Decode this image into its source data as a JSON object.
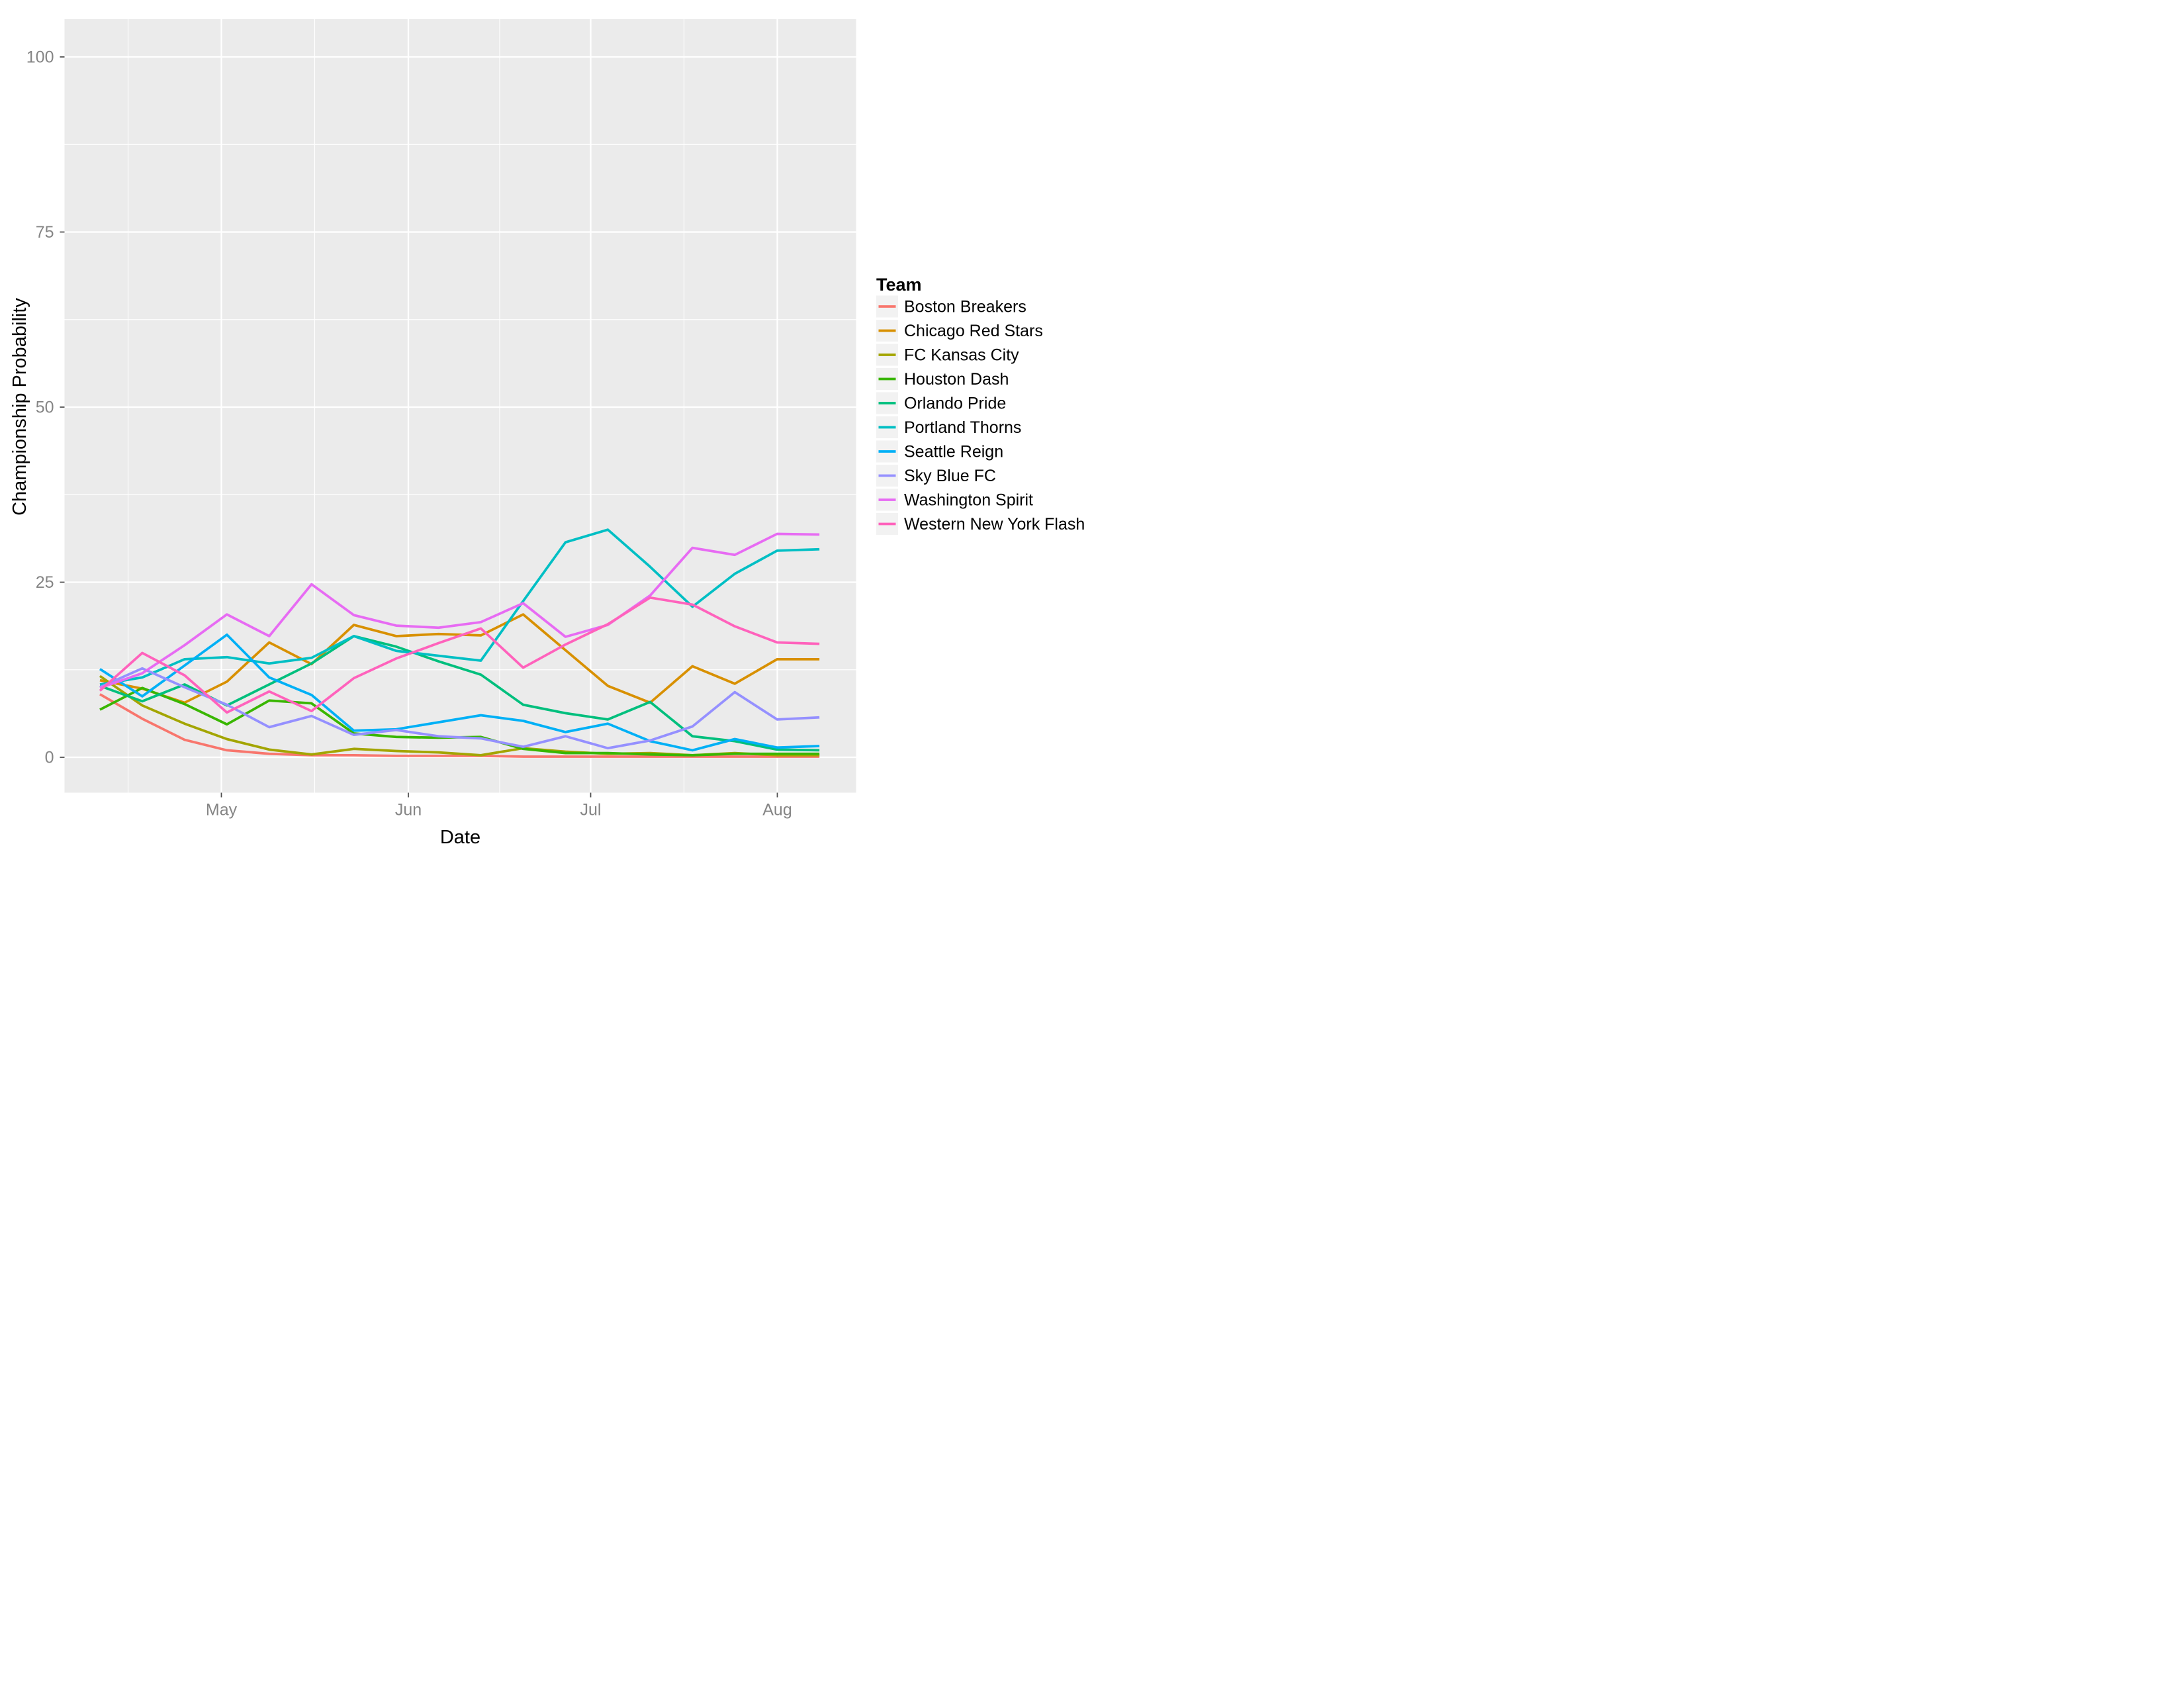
{
  "figure": {
    "kind": "ggplot-line-chart",
    "background": "#ffffff"
  },
  "panel": {
    "background": "#ebebeb",
    "grid_color": "#ffffff",
    "tick_mark_color": "#4d4d4d",
    "tick_label_color": "#858585"
  },
  "axes": {
    "x": {
      "label": "Date",
      "ticks": [
        "May",
        "Jun",
        "Jul",
        "Aug"
      ]
    },
    "y": {
      "label": "Championship Probability",
      "ticks": [
        "0",
        "25",
        "50",
        "75",
        "100"
      ]
    }
  },
  "legend": {
    "title": "Team",
    "key_background": "#f2f2f2"
  },
  "chart_data": {
    "type": "line",
    "title": "",
    "xlabel": "Date",
    "ylabel": "Championship Probability",
    "ylim": [
      0,
      100
    ],
    "y_major_ticks": [
      0,
      25,
      50,
      75,
      100
    ],
    "y_minor_ticks": [
      12.5,
      37.5,
      62.5,
      87.5
    ],
    "x_tick_labels": [
      "May",
      "Jun",
      "Jul",
      "Aug"
    ],
    "grid": "on",
    "legend_position": "right",
    "x": [
      "Apr 11",
      "Apr 18",
      "Apr 25",
      "May 2",
      "May 9",
      "May 16",
      "May 23",
      "May 30",
      "Jun 6",
      "Jun 13",
      "Jun 20",
      "Jun 27",
      "Jul 4",
      "Jul 11",
      "Jul 18",
      "Jul 25",
      "Aug 1",
      "Aug 8"
    ],
    "series": [
      {
        "name": "Boston Breakers",
        "color": "#F8766D",
        "values": [
          9.0,
          5.5,
          2.5,
          1.0,
          0.5,
          0.3,
          0.3,
          0.2,
          0.2,
          0.2,
          0.1,
          0.1,
          0.1,
          0.1,
          0.1,
          0.1,
          0.1,
          0.1
        ]
      },
      {
        "name": "Chicago Red Stars",
        "color": "#D89000",
        "values": [
          11.0,
          9.8,
          7.8,
          10.8,
          16.4,
          13.3,
          18.9,
          17.3,
          17.6,
          17.4,
          20.4,
          15.3,
          10.2,
          7.8,
          13.0,
          10.5,
          14.0,
          14.0
        ]
      },
      {
        "name": "FC Kansas City",
        "color": "#A3A500",
        "values": [
          11.6,
          7.4,
          4.8,
          2.6,
          1.1,
          0.4,
          1.2,
          0.9,
          0.7,
          0.3,
          1.3,
          0.8,
          0.5,
          0.6,
          0.3,
          0.6,
          0.3,
          0.3
        ]
      },
      {
        "name": "Houston Dash",
        "color": "#39B600",
        "values": [
          6.8,
          9.9,
          7.6,
          4.7,
          8.1,
          7.7,
          3.4,
          2.9,
          2.8,
          2.9,
          1.2,
          0.6,
          0.6,
          0.4,
          0.3,
          0.5,
          0.5,
          0.5
        ]
      },
      {
        "name": "Orlando Pride",
        "color": "#00BF7D",
        "values": [
          10.2,
          8.0,
          10.4,
          7.4,
          10.4,
          13.4,
          17.3,
          15.8,
          13.7,
          11.8,
          7.5,
          6.3,
          5.4,
          7.9,
          3.0,
          2.3,
          1.1,
          1.0
        ]
      },
      {
        "name": "Portland Thorns",
        "color": "#00BFC4",
        "values": [
          10.4,
          11.4,
          14.0,
          14.3,
          13.4,
          14.2,
          17.3,
          15.2,
          14.5,
          13.8,
          22.3,
          30.7,
          32.5,
          27.2,
          21.5,
          26.2,
          29.5,
          29.7
        ]
      },
      {
        "name": "Seattle Reign",
        "color": "#00B0F6",
        "values": [
          12.6,
          8.7,
          13.1,
          17.5,
          11.4,
          8.9,
          3.8,
          4.0,
          5.0,
          6.0,
          5.2,
          3.6,
          4.8,
          2.3,
          1.0,
          2.6,
          1.4,
          1.6
        ]
      },
      {
        "name": "Sky Blue FC",
        "color": "#9590FF",
        "values": [
          10.0,
          12.7,
          10.0,
          7.5,
          4.3,
          5.9,
          3.2,
          3.9,
          3.0,
          2.7,
          1.5,
          3.0,
          1.3,
          2.4,
          4.4,
          9.3,
          5.4,
          5.7
        ]
      },
      {
        "name": "Washington Spirit",
        "color": "#E76BF3",
        "values": [
          9.9,
          12.0,
          16.0,
          20.4,
          17.3,
          24.7,
          20.3,
          18.8,
          18.5,
          19.3,
          22.0,
          17.2,
          18.9,
          23.1,
          29.9,
          28.9,
          31.9,
          31.8
        ]
      },
      {
        "name": "Western New York Flash",
        "color": "#FF62BC",
        "values": [
          9.5,
          14.9,
          11.7,
          6.4,
          9.4,
          6.6,
          11.3,
          14.1,
          16.3,
          18.4,
          12.8,
          16.1,
          19.0,
          22.8,
          21.8,
          18.7,
          16.4,
          16.2
        ]
      }
    ]
  }
}
